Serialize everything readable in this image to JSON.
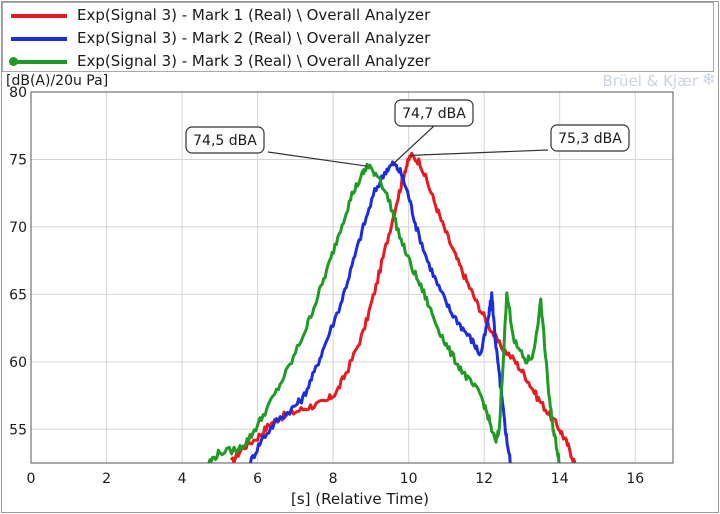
{
  "chart_data": {
    "type": "line",
    "ylabel": "[dB(A)/20u Pa]",
    "xlabel": "[s] (Relative Time)",
    "xlim": [
      0,
      17
    ],
    "ylim": [
      52.5,
      80
    ],
    "x_ticks": [
      0,
      2,
      4,
      6,
      8,
      10,
      12,
      14,
      16
    ],
    "y_ticks": [
      55,
      60,
      65,
      70,
      75,
      80
    ],
    "grid": true,
    "legend_position": "top",
    "brand": "Brüel & Kjær",
    "series": [
      {
        "name": "Exp(Signal 3) - Mark 1 (Real) \\ Overall Analyzer",
        "color": "#e8191f",
        "points": [
          [
            5.3,
            52.5
          ],
          [
            5.6,
            53.6
          ],
          [
            6.0,
            54.4
          ],
          [
            6.3,
            55.3
          ],
          [
            6.6,
            55.9
          ],
          [
            7.0,
            56.3
          ],
          [
            7.4,
            56.7
          ],
          [
            7.8,
            57.0
          ],
          [
            8.1,
            57.8
          ],
          [
            8.4,
            59.5
          ],
          [
            8.8,
            62.2
          ],
          [
            9.1,
            65.2
          ],
          [
            9.4,
            68.6
          ],
          [
            9.7,
            72.0
          ],
          [
            9.9,
            74.2
          ],
          [
            10.05,
            75.3
          ],
          [
            10.3,
            74.8
          ],
          [
            10.6,
            72.5
          ],
          [
            10.9,
            70.2
          ],
          [
            11.2,
            68.1
          ],
          [
            11.5,
            66.2
          ],
          [
            11.8,
            64.4
          ],
          [
            12.1,
            62.8
          ],
          [
            12.4,
            61.3
          ],
          [
            12.8,
            60.1
          ],
          [
            13.1,
            58.9
          ],
          [
            13.4,
            57.4
          ],
          [
            13.7,
            56.2
          ],
          [
            14.0,
            55.0
          ],
          [
            14.2,
            53.9
          ],
          [
            14.4,
            52.5
          ]
        ]
      },
      {
        "name": "Exp(Signal 3) - Mark 2 (Real) \\ Overall Analyzer",
        "color": "#1a2de0",
        "points": [
          [
            5.8,
            52.5
          ],
          [
            6.1,
            54.2
          ],
          [
            6.5,
            55.6
          ],
          [
            6.9,
            56.5
          ],
          [
            7.2,
            57.3
          ],
          [
            7.5,
            59.2
          ],
          [
            7.8,
            61.4
          ],
          [
            8.2,
            64.3
          ],
          [
            8.5,
            67.1
          ],
          [
            8.8,
            70.0
          ],
          [
            9.1,
            72.6
          ],
          [
            9.4,
            74.2
          ],
          [
            9.6,
            74.7
          ],
          [
            9.8,
            74.0
          ],
          [
            10.0,
            72.3
          ],
          [
            10.2,
            70.0
          ],
          [
            10.5,
            67.5
          ],
          [
            10.8,
            65.5
          ],
          [
            11.1,
            63.8
          ],
          [
            11.4,
            62.6
          ],
          [
            11.7,
            61.5
          ],
          [
            11.9,
            60.5
          ],
          [
            12.1,
            63.0
          ],
          [
            12.2,
            65.0
          ],
          [
            12.3,
            61.5
          ],
          [
            12.4,
            59.0
          ],
          [
            12.5,
            56.5
          ],
          [
            12.6,
            54.2
          ],
          [
            12.7,
            52.5
          ]
        ]
      },
      {
        "name": "Exp(Signal 3) - Mark 3 (Real) \\ Overall Analyzer",
        "color": "#1e9b23",
        "marker": "dot",
        "points": [
          [
            4.7,
            52.5
          ],
          [
            5.0,
            53.3
          ],
          [
            5.5,
            53.5
          ],
          [
            5.8,
            54.4
          ],
          [
            6.1,
            55.8
          ],
          [
            6.5,
            57.8
          ],
          [
            6.9,
            60.0
          ],
          [
            7.3,
            62.6
          ],
          [
            7.6,
            64.9
          ],
          [
            7.9,
            67.3
          ],
          [
            8.2,
            69.9
          ],
          [
            8.5,
            72.4
          ],
          [
            8.8,
            74.0
          ],
          [
            8.9,
            74.5
          ],
          [
            9.2,
            73.8
          ],
          [
            9.5,
            71.8
          ],
          [
            9.8,
            69.0
          ],
          [
            10.1,
            66.9
          ],
          [
            10.4,
            65.1
          ],
          [
            10.7,
            63.0
          ],
          [
            11.0,
            61.2
          ],
          [
            11.3,
            59.8
          ],
          [
            11.6,
            58.6
          ],
          [
            11.9,
            57.6
          ],
          [
            12.1,
            56.0
          ],
          [
            12.3,
            54.0
          ],
          [
            12.4,
            55.0
          ],
          [
            12.6,
            65.0
          ],
          [
            12.8,
            61.5
          ],
          [
            13.1,
            60.0
          ],
          [
            13.3,
            60.5
          ],
          [
            13.5,
            64.5
          ],
          [
            13.7,
            58.0
          ],
          [
            13.8,
            55.5
          ],
          [
            13.9,
            54.0
          ],
          [
            14.0,
            52.5
          ]
        ]
      }
    ],
    "annotations": [
      {
        "text": "74,5 dBA",
        "x": 8.9,
        "y": 74.5
      },
      {
        "text": "74,7 dBA",
        "x": 9.6,
        "y": 74.7
      },
      {
        "text": "75,3 dBA",
        "x": 10.05,
        "y": 75.3
      }
    ]
  }
}
